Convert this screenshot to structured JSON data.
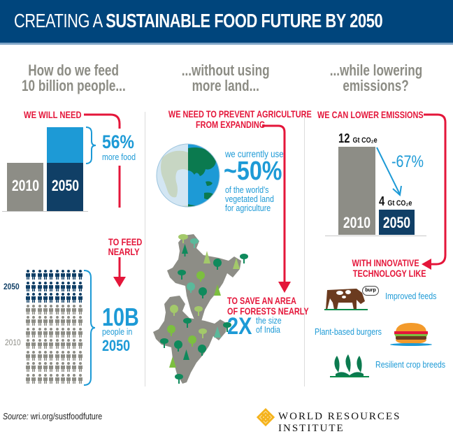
{
  "header": {
    "title_light": "CREATING A ",
    "title_bold": "SUSTAINABLE FOOD FUTURE BY 2050",
    "background": "#00457c"
  },
  "columns": {
    "feed": {
      "question_line1": "How do we feed",
      "question_line2": "10 billion people...",
      "callout_need": "WE WILL NEED",
      "food_increase_value": "56%",
      "food_increase_label": "more food",
      "bars": [
        {
          "label": "2010",
          "color": "#8d8d86"
        },
        {
          "label": "2050",
          "color": "#103f66",
          "extra_color": "#1d9ad6"
        }
      ],
      "callout_feed_line1": "TO FEED",
      "callout_feed_line2": "NEARLY",
      "people_year_top": "2050",
      "people_year_bottom": "2010",
      "people_total_value": "10B",
      "people_total_label": "people in",
      "people_total_year": "2050",
      "people_grid": {
        "rows": 10,
        "cols": 10,
        "rows_2050_only": 3,
        "color_2050": "#103f66",
        "color_2010": "#8d8d86"
      }
    },
    "land": {
      "question_line1": "...without using",
      "question_line2": "more land...",
      "callout_prevent_line1": "WE NEED TO PREVENT AGRICULTURE",
      "callout_prevent_line2": "FROM EXPANDING",
      "land_use_prefix": "we currently use",
      "land_use_value": "~50%",
      "land_use_line1": "of the world's",
      "land_use_line2": "vegetated land",
      "land_use_line3": "for agriculture",
      "callout_save_line1": "TO SAVE AN AREA",
      "callout_save_line2": "OF FORESTS NEARLY",
      "forest_multiple": "2X",
      "forest_label_line1": "the size",
      "forest_label_line2": "of India"
    },
    "emissions": {
      "question_line1": "...while lowering",
      "question_line2": "emissions?",
      "callout_lower": "WE CAN LOWER EMISSIONS",
      "bar_2010_value": "12",
      "bar_2050_value": "4",
      "unit": "Gt CO₂e",
      "reduction": "-67%",
      "bars": [
        {
          "label": "2010",
          "color": "#8d8d86"
        },
        {
          "label": "2050",
          "color": "#103f66"
        }
      ],
      "callout_tech_line1": "WITH INNOVATIVE",
      "callout_tech_line2": "TECHNOLOGY LIKE",
      "cow_speech": "burp",
      "tech_items": [
        {
          "label": "Improved feeds",
          "icon": "cow-icon"
        },
        {
          "label": "Plant-based burgers",
          "icon": "burger-icon"
        },
        {
          "label": "Resilient crop breeds",
          "icon": "wheat-icon"
        }
      ]
    }
  },
  "footer": {
    "source_prefix": "Source:",
    "source_url": " wri.org/sustfoodfuture",
    "org_name": "WORLD RESOURCES INSTITUTE",
    "logo_color": "#f5b31c"
  },
  "colors": {
    "accent_red": "#e4163a",
    "accent_blue": "#1d9ad6",
    "dark_blue": "#103f66",
    "gray": "#8d8d86"
  }
}
